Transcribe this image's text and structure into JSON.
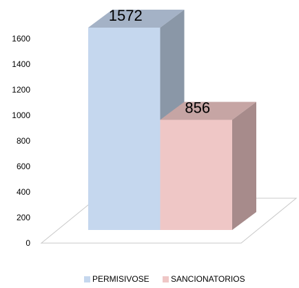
{
  "chart_data": {
    "type": "bar",
    "categories": [
      null
    ],
    "series": [
      {
        "name": "PERMISIVOSE",
        "color": "#c5d7ee",
        "values": [
          1572
        ]
      },
      {
        "name": "SANCIONATORIOS",
        "color": "#efc7c6",
        "values": [
          856
        ]
      }
    ],
    "ylim": [
      0,
      1600
    ],
    "yticks": [
      0,
      200,
      400,
      600,
      800,
      1000,
      1200,
      1400,
      1600
    ],
    "grid": false,
    "legend": "bottom"
  }
}
